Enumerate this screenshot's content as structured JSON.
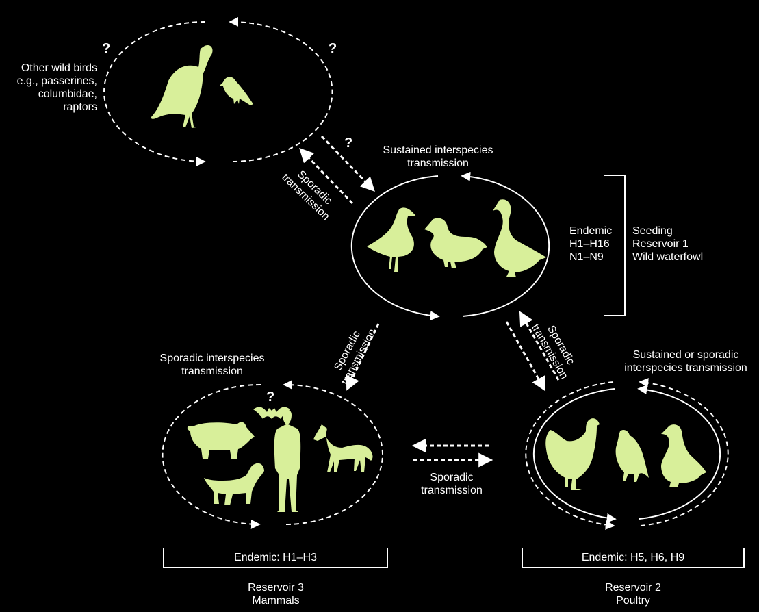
{
  "labels": {
    "wild_birds": [
      "Other wild birds",
      "e.g., passerines,",
      "columbidae,",
      "raptors"
    ],
    "sustained_top": [
      "Sustained interspecies",
      "transmission"
    ],
    "sporadic_left_upper": [
      "Sporadic",
      "transmission"
    ],
    "endemic_waterfowl": [
      "Endemic",
      "H1–H16",
      "N1–N9"
    ],
    "reservoir1": [
      "Seeding",
      "Reservoir 1",
      "Wild waterfowl"
    ],
    "sporadic_mammals_arrow": [
      "Sporadic",
      "transmission"
    ],
    "sporadic_poultry_arrow": [
      "Sporadic",
      "transmission"
    ],
    "sporadic_interspecies": [
      "Sporadic interspecies",
      "transmission"
    ],
    "sustained_or_sporadic": [
      "Sustained or sporadic",
      "interspecies transmission"
    ],
    "sporadic_middle": [
      "Sporadic",
      "transmission"
    ],
    "endemic_mammals": "Endemic: H1–H3",
    "endemic_poultry": "Endemic: H5, H6, H9",
    "reservoir3": [
      "Reservoir 3",
      "Mammals"
    ],
    "reservoir2": [
      "Reservoir 2",
      "Poultry"
    ],
    "question_mark": "?"
  },
  "colors": {
    "background": "#000000",
    "silhouette": "#d8ef9a",
    "line": "#ffffff"
  },
  "icons": {
    "wild_birds": [
      "vulture-icon",
      "songbird-icon"
    ],
    "waterfowl": [
      "gull-icon",
      "duck-icon",
      "swan-icon"
    ],
    "mammals": [
      "pig-icon",
      "bat-icon",
      "human-icon",
      "horse-icon",
      "dog-icon"
    ],
    "poultry": [
      "chicken-icon",
      "quail-icon",
      "domestic-duck-icon"
    ]
  }
}
